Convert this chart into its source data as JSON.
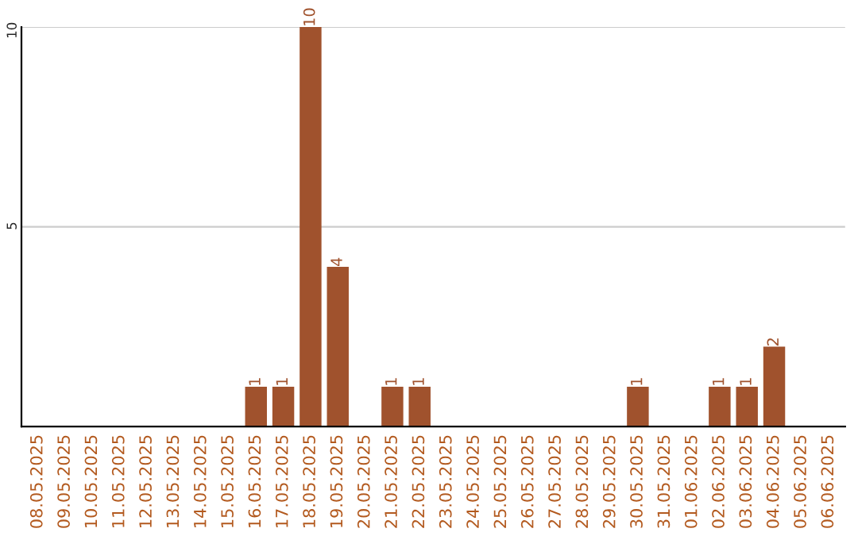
{
  "chart_data": {
    "type": "bar",
    "categories": [
      "08.05.2025",
      "09.05.2025",
      "10.05.2025",
      "11.05.2025",
      "12.05.2025",
      "13.05.2025",
      "14.05.2025",
      "15.05.2025",
      "16.05.2025",
      "17.05.2025",
      "18.05.2025",
      "19.05.2025",
      "20.05.2025",
      "21.05.2025",
      "22.05.2025",
      "23.05.2025",
      "24.05.2025",
      "25.05.2025",
      "26.05.2025",
      "27.05.2025",
      "28.05.2025",
      "29.05.2025",
      "30.05.2025",
      "31.05.2025",
      "01.06.2025",
      "02.06.2025",
      "03.06.2025",
      "04.06.2025",
      "05.06.2025",
      "06.06.2025"
    ],
    "values": [
      0,
      0,
      0,
      0,
      0,
      0,
      0,
      0,
      1,
      1,
      10,
      4,
      0,
      1,
      1,
      0,
      0,
      0,
      0,
      0,
      0,
      0,
      1,
      0,
      0,
      1,
      1,
      2,
      0,
      0
    ],
    "value_labels": [
      null,
      null,
      null,
      null,
      null,
      null,
      null,
      null,
      "1",
      "1",
      "10",
      "4",
      null,
      "1",
      "1",
      null,
      null,
      null,
      null,
      null,
      null,
      null,
      "1",
      null,
      null,
      "1",
      "1",
      "2",
      null,
      null
    ],
    "color": "#a0522d",
    "ylim": [
      0,
      10
    ],
    "yticks": [
      5,
      10
    ],
    "grid": "y"
  }
}
